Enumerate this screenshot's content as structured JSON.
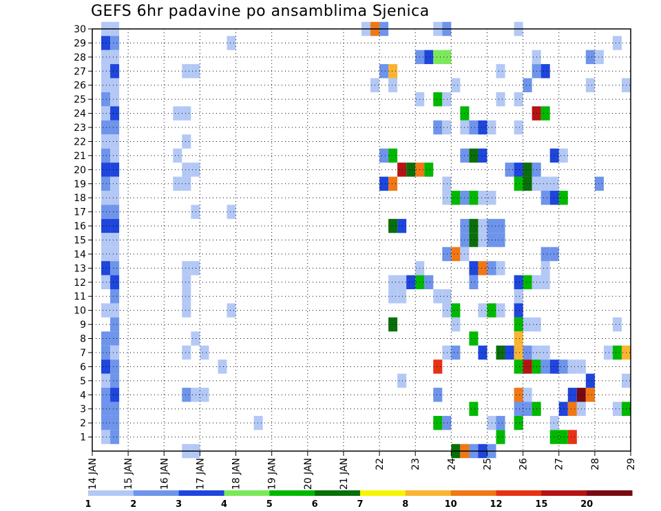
{
  "chart_data": {
    "type": "heatmap",
    "title": "GEFS 6hr padavine po ansamblima Sjenica",
    "y_ticks": [
      1,
      2,
      3,
      4,
      5,
      6,
      7,
      8,
      9,
      10,
      11,
      12,
      13,
      14,
      15,
      16,
      17,
      18,
      19,
      20,
      21,
      22,
      23,
      24,
      25,
      26,
      27,
      28,
      29,
      30
    ],
    "x_ticks": [
      "14 JAN",
      "15 JAN",
      "16 JAN",
      "17 JAN",
      "18 JAN",
      "19 JAN",
      "20 JAN",
      "21 JAN",
      "22",
      "23",
      "24",
      "25",
      "26",
      "27",
      "28",
      "29"
    ],
    "x_range_days": [
      14,
      29
    ],
    "y_range": [
      0,
      30
    ],
    "grid": true,
    "legend_position": "bottom",
    "legend_labels": [
      "1",
      "2",
      "3",
      "4",
      "5",
      "6",
      "7",
      "8",
      "10",
      "12",
      "15",
      "20"
    ],
    "legend_colors": [
      "#b3c8f5",
      "#6e94eb",
      "#1e45dc",
      "#7be85a",
      "#00b800",
      "#0a6e0a",
      "#f5f500",
      "#fab432",
      "#f07814",
      "#e63214",
      "#b41414",
      "#780a14"
    ],
    "cell_width_days": 0.25,
    "cells": [
      [
        14.25,
        30,
        1
      ],
      [
        14.5,
        30,
        1
      ],
      [
        14.25,
        29,
        3
      ],
      [
        14.5,
        29,
        2
      ],
      [
        14.25,
        28,
        1
      ],
      [
        14.5,
        28,
        1
      ],
      [
        14.25,
        27,
        1
      ],
      [
        14.5,
        27,
        3
      ],
      [
        14.25,
        26,
        1
      ],
      [
        14.5,
        26,
        1
      ],
      [
        14.25,
        25,
        2
      ],
      [
        14.5,
        25,
        1
      ],
      [
        14.25,
        24,
        1
      ],
      [
        14.5,
        24,
        3
      ],
      [
        14.25,
        23,
        2
      ],
      [
        14.5,
        23,
        2
      ],
      [
        14.25,
        22,
        1
      ],
      [
        14.5,
        22,
        1
      ],
      [
        14.25,
        21,
        2
      ],
      [
        14.5,
        21,
        1
      ],
      [
        14.25,
        20,
        3
      ],
      [
        14.5,
        20,
        3
      ],
      [
        14.25,
        19,
        2
      ],
      [
        14.5,
        19,
        1
      ],
      [
        14.25,
        18,
        1
      ],
      [
        14.5,
        18,
        1
      ],
      [
        14.25,
        17,
        2
      ],
      [
        14.5,
        17,
        2
      ],
      [
        14.25,
        16,
        3
      ],
      [
        14.5,
        16,
        3
      ],
      [
        14.25,
        15,
        1
      ],
      [
        14.5,
        15,
        1
      ],
      [
        14.25,
        14,
        1
      ],
      [
        14.5,
        14,
        1
      ],
      [
        14.25,
        13,
        3
      ],
      [
        14.5,
        13,
        2
      ],
      [
        14.25,
        12,
        1
      ],
      [
        14.5,
        12,
        3
      ],
      [
        14.5,
        11,
        2
      ],
      [
        14.25,
        10,
        1
      ],
      [
        14.5,
        10,
        1
      ],
      [
        14.5,
        9,
        2
      ],
      [
        14.25,
        8,
        2
      ],
      [
        14.5,
        8,
        2
      ],
      [
        14.25,
        7,
        2
      ],
      [
        14.5,
        7,
        1
      ],
      [
        14.25,
        6,
        3
      ],
      [
        14.5,
        6,
        2
      ],
      [
        14.25,
        5,
        1
      ],
      [
        14.5,
        5,
        2
      ],
      [
        14.25,
        4,
        2
      ],
      [
        14.5,
        4,
        3
      ],
      [
        14.25,
        3,
        2
      ],
      [
        14.5,
        3,
        2
      ],
      [
        14.25,
        2,
        2
      ],
      [
        14.5,
        2,
        2
      ],
      [
        14.25,
        1,
        1
      ],
      [
        14.5,
        1,
        2
      ],
      [
        16.5,
        27,
        1
      ],
      [
        16.75,
        27,
        1
      ],
      [
        16.25,
        24,
        1
      ],
      [
        16.5,
        24,
        1
      ],
      [
        16.5,
        22,
        1
      ],
      [
        16.25,
        21,
        1
      ],
      [
        16.5,
        20,
        1
      ],
      [
        16.75,
        20,
        1
      ],
      [
        16.25,
        19,
        1
      ],
      [
        16.5,
        19,
        1
      ],
      [
        16.75,
        17,
        1
      ],
      [
        16.5,
        13,
        1
      ],
      [
        16.75,
        13,
        1
      ],
      [
        16.5,
        12,
        1
      ],
      [
        16.5,
        11,
        1
      ],
      [
        16.5,
        10,
        1
      ],
      [
        16.75,
        8,
        1
      ],
      [
        16.5,
        7,
        1
      ],
      [
        17.0,
        7,
        1
      ],
      [
        16.5,
        4,
        2
      ],
      [
        16.75,
        4,
        1
      ],
      [
        17.0,
        4,
        1
      ],
      [
        16.5,
        0,
        1
      ],
      [
        16.75,
        0,
        1
      ],
      [
        17.75,
        29,
        1
      ],
      [
        17.75,
        17,
        1
      ],
      [
        17.5,
        6,
        1
      ],
      [
        17.75,
        10,
        1
      ],
      [
        18.5,
        2,
        1
      ],
      [
        21.5,
        30,
        1
      ],
      [
        21.75,
        30,
        10
      ],
      [
        22.0,
        30,
        2
      ],
      [
        22.0,
        27,
        2
      ],
      [
        22.25,
        27,
        8
      ],
      [
        21.75,
        26,
        1
      ],
      [
        22.25,
        26,
        1
      ],
      [
        22.0,
        21,
        2
      ],
      [
        22.25,
        21,
        5
      ],
      [
        22.5,
        20,
        15
      ],
      [
        22.75,
        20,
        6
      ],
      [
        23.0,
        20,
        10
      ],
      [
        23.25,
        20,
        5
      ],
      [
        22.0,
        19,
        3
      ],
      [
        22.25,
        19,
        10
      ],
      [
        22.25,
        16,
        6
      ],
      [
        22.5,
        16,
        3
      ],
      [
        22.25,
        12,
        1
      ],
      [
        22.5,
        12,
        1
      ],
      [
        22.25,
        11,
        1
      ],
      [
        22.5,
        11,
        1
      ],
      [
        22.25,
        9,
        6
      ],
      [
        22.5,
        5,
        1
      ],
      [
        23.0,
        28,
        2
      ],
      [
        23.25,
        28,
        3
      ],
      [
        23.5,
        28,
        4
      ],
      [
        23.75,
        28,
        4
      ],
      [
        23.0,
        25,
        1
      ],
      [
        23.5,
        25,
        5
      ],
      [
        23.75,
        25,
        1
      ],
      [
        23.5,
        23,
        2
      ],
      [
        23.75,
        23,
        1
      ],
      [
        23.25,
        12,
        2
      ],
      [
        22.75,
        12,
        3
      ],
      [
        23.0,
        12,
        5
      ],
      [
        23.0,
        13,
        1
      ],
      [
        23.5,
        11,
        1
      ],
      [
        23.5,
        6,
        12
      ],
      [
        23.5,
        4,
        2
      ],
      [
        23.5,
        2,
        5
      ],
      [
        23.75,
        2,
        2
      ],
      [
        23.5,
        30,
        1
      ],
      [
        23.75,
        30,
        2
      ],
      [
        24.0,
        26,
        1
      ],
      [
        23.75,
        18,
        1
      ],
      [
        24.0,
        18,
        5
      ],
      [
        23.75,
        19,
        1
      ],
      [
        23.75,
        14,
        2
      ],
      [
        24.0,
        14,
        10
      ],
      [
        24.25,
        14,
        1
      ],
      [
        23.75,
        11,
        1
      ],
      [
        23.75,
        10,
        1
      ],
      [
        24.0,
        10,
        5
      ],
      [
        24.0,
        9,
        1
      ],
      [
        23.75,
        7,
        1
      ],
      [
        24.0,
        7,
        2
      ],
      [
        24.0,
        0,
        6
      ],
      [
        24.25,
        0,
        10
      ],
      [
        24.5,
        0,
        2
      ],
      [
        24.75,
        0,
        3
      ],
      [
        25.0,
        0,
        2
      ],
      [
        24.25,
        24,
        5
      ],
      [
        24.25,
        23,
        1
      ],
      [
        24.5,
        23,
        2
      ],
      [
        24.75,
        23,
        3
      ],
      [
        25.0,
        23,
        1
      ],
      [
        24.25,
        21,
        2
      ],
      [
        24.5,
        21,
        6
      ],
      [
        24.75,
        21,
        3
      ],
      [
        24.25,
        18,
        2
      ],
      [
        24.5,
        18,
        5
      ],
      [
        24.75,
        18,
        1
      ],
      [
        25.0,
        18,
        1
      ],
      [
        24.25,
        16,
        2
      ],
      [
        24.5,
        16,
        6
      ],
      [
        24.25,
        15,
        2
      ],
      [
        24.5,
        15,
        6
      ],
      [
        24.75,
        16,
        1
      ],
      [
        25.0,
        16,
        2
      ],
      [
        25.25,
        16,
        2
      ],
      [
        24.75,
        15,
        1
      ],
      [
        25.0,
        15,
        2
      ],
      [
        25.25,
        15,
        2
      ],
      [
        24.5,
        13,
        3
      ],
      [
        24.75,
        13,
        10
      ],
      [
        25.0,
        13,
        2
      ],
      [
        25.25,
        13,
        1
      ],
      [
        24.5,
        12,
        2
      ],
      [
        24.75,
        10,
        1
      ],
      [
        25.0,
        10,
        5
      ],
      [
        25.25,
        10,
        1
      ],
      [
        24.5,
        8,
        5
      ],
      [
        24.75,
        7,
        3
      ],
      [
        25.25,
        7,
        6
      ],
      [
        25.5,
        7,
        3
      ],
      [
        24.5,
        3,
        5
      ],
      [
        25.0,
        2,
        1
      ],
      [
        25.25,
        1,
        5
      ],
      [
        25.25,
        2,
        2
      ],
      [
        25.25,
        25,
        1
      ],
      [
        25.25,
        27,
        1
      ],
      [
        25.75,
        30,
        1
      ],
      [
        25.75,
        25,
        1
      ],
      [
        25.75,
        23,
        1
      ],
      [
        25.5,
        20,
        2
      ],
      [
        25.75,
        20,
        3
      ],
      [
        26.0,
        20,
        6
      ],
      [
        26.25,
        20,
        2
      ],
      [
        25.75,
        19,
        5
      ],
      [
        26.0,
        19,
        6
      ],
      [
        26.25,
        19,
        1
      ],
      [
        26.5,
        19,
        1
      ],
      [
        26.75,
        19,
        1
      ],
      [
        26.25,
        28,
        1
      ],
      [
        26.25,
        27,
        2
      ],
      [
        26.5,
        27,
        3
      ],
      [
        26.0,
        26,
        2
      ],
      [
        26.25,
        24,
        15
      ],
      [
        26.5,
        24,
        5
      ],
      [
        25.75,
        12,
        3
      ],
      [
        26.0,
        12,
        5
      ],
      [
        26.25,
        12,
        1
      ],
      [
        26.5,
        12,
        1
      ],
      [
        26.5,
        13,
        1
      ],
      [
        25.75,
        11,
        1
      ],
      [
        25.75,
        10,
        3
      ],
      [
        25.75,
        9,
        5
      ],
      [
        26.0,
        9,
        1
      ],
      [
        26.25,
        9,
        1
      ],
      [
        25.75,
        8,
        8
      ],
      [
        25.75,
        7,
        8
      ],
      [
        26.0,
        7,
        2
      ],
      [
        26.25,
        7,
        1
      ],
      [
        26.5,
        7,
        1
      ],
      [
        25.75,
        6,
        5
      ],
      [
        26.0,
        6,
        15
      ],
      [
        26.25,
        6,
        5
      ],
      [
        26.5,
        6,
        2
      ],
      [
        26.75,
        6,
        3
      ],
      [
        27.0,
        6,
        2
      ],
      [
        25.75,
        4,
        10
      ],
      [
        26.0,
        4,
        1
      ],
      [
        25.75,
        3,
        2
      ],
      [
        26.0,
        3,
        2
      ],
      [
        26.25,
        3,
        5
      ],
      [
        25.75,
        2,
        5
      ],
      [
        26.75,
        2,
        1
      ],
      [
        26.75,
        1,
        5
      ],
      [
        27.0,
        1,
        5
      ],
      [
        27.25,
        1,
        12
      ],
      [
        26.5,
        18,
        2
      ],
      [
        26.75,
        18,
        3
      ],
      [
        27.0,
        18,
        5
      ],
      [
        26.5,
        14,
        2
      ],
      [
        26.75,
        14,
        2
      ],
      [
        26.75,
        21,
        3
      ],
      [
        27.0,
        21,
        1
      ],
      [
        27.25,
        6,
        1
      ],
      [
        27.5,
        6,
        1
      ],
      [
        27.75,
        5,
        3
      ],
      [
        27.25,
        4,
        3
      ],
      [
        27.5,
        4,
        20
      ],
      [
        27.75,
        4,
        10
      ],
      [
        27.0,
        3,
        3
      ],
      [
        27.25,
        3,
        10
      ],
      [
        27.5,
        3,
        1
      ],
      [
        27.75,
        28,
        2
      ],
      [
        28.0,
        28,
        1
      ],
      [
        28.0,
        19,
        2
      ],
      [
        27.75,
        26,
        1
      ],
      [
        28.5,
        29,
        1
      ],
      [
        28.75,
        26,
        1
      ],
      [
        28.75,
        5,
        1
      ],
      [
        28.25,
        7,
        1
      ],
      [
        28.5,
        7,
        5
      ],
      [
        28.75,
        7,
        8
      ],
      [
        28.5,
        3,
        1
      ],
      [
        28.75,
        3,
        5
      ],
      [
        28.5,
        9,
        1
      ]
    ]
  }
}
